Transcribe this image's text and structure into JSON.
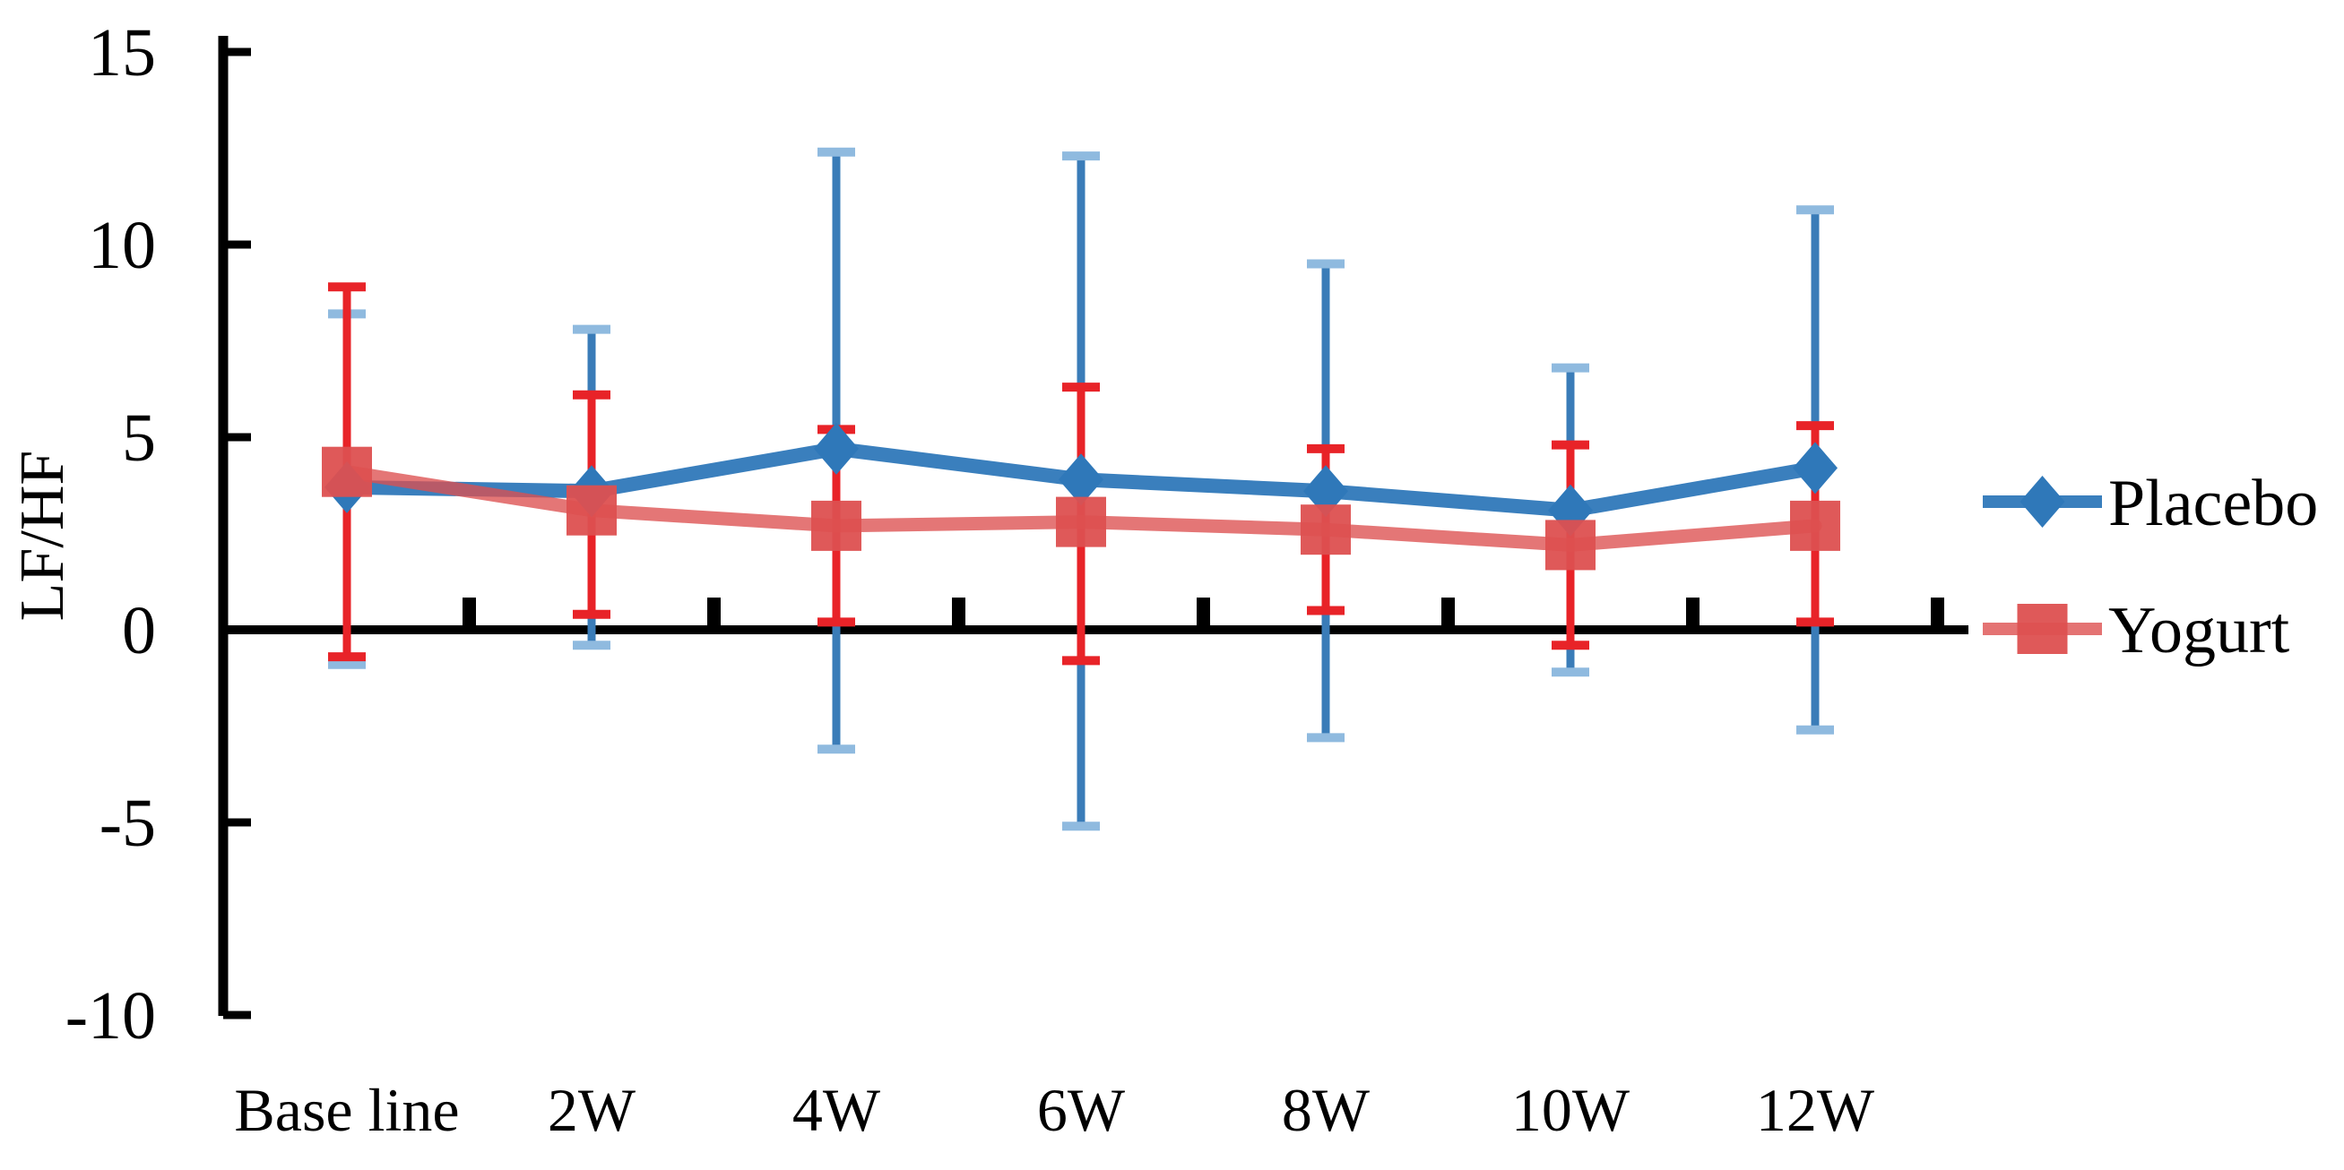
{
  "chart_data": {
    "type": "line",
    "title": "",
    "ylabel": "LF/HF",
    "xlabel": "",
    "grid": false,
    "legend_position": "right",
    "ylim": [
      -10,
      15
    ],
    "yticks": [
      15,
      10,
      5,
      0,
      -5,
      -10
    ],
    "categories": [
      "Base line",
      "2W",
      "4W",
      "6W",
      "8W",
      "10W",
      "12W"
    ],
    "series": [
      {
        "name": "Placebo",
        "marker": "diamond",
        "color": "#2F78B9",
        "cap_color": "#8FBADF",
        "error_color": "#3A7CB8",
        "values": [
          3.7,
          3.6,
          4.7,
          3.9,
          3.6,
          3.1,
          4.2
        ],
        "error_upper": [
          8.2,
          7.8,
          12.4,
          12.3,
          9.5,
          6.8,
          10.9
        ],
        "error_lower": [
          -0.9,
          -0.4,
          -3.1,
          -5.1,
          -2.8,
          -1.1,
          -2.6
        ]
      },
      {
        "name": "Yogurt",
        "marker": "square",
        "color": "#DD5050",
        "cap_color": "#E82328",
        "error_color": "#E82328",
        "values": [
          4.1,
          3.1,
          2.7,
          2.8,
          2.6,
          2.2,
          2.7
        ],
        "error_upper": [
          8.9,
          6.1,
          5.2,
          6.3,
          4.7,
          4.8,
          5.3
        ],
        "error_lower": [
          -0.7,
          0.4,
          0.2,
          -0.8,
          0.5,
          -0.4,
          0.2
        ]
      }
    ]
  },
  "colors": {
    "axis": "#000000",
    "background": "#FFFFFF",
    "text": "#000000"
  }
}
